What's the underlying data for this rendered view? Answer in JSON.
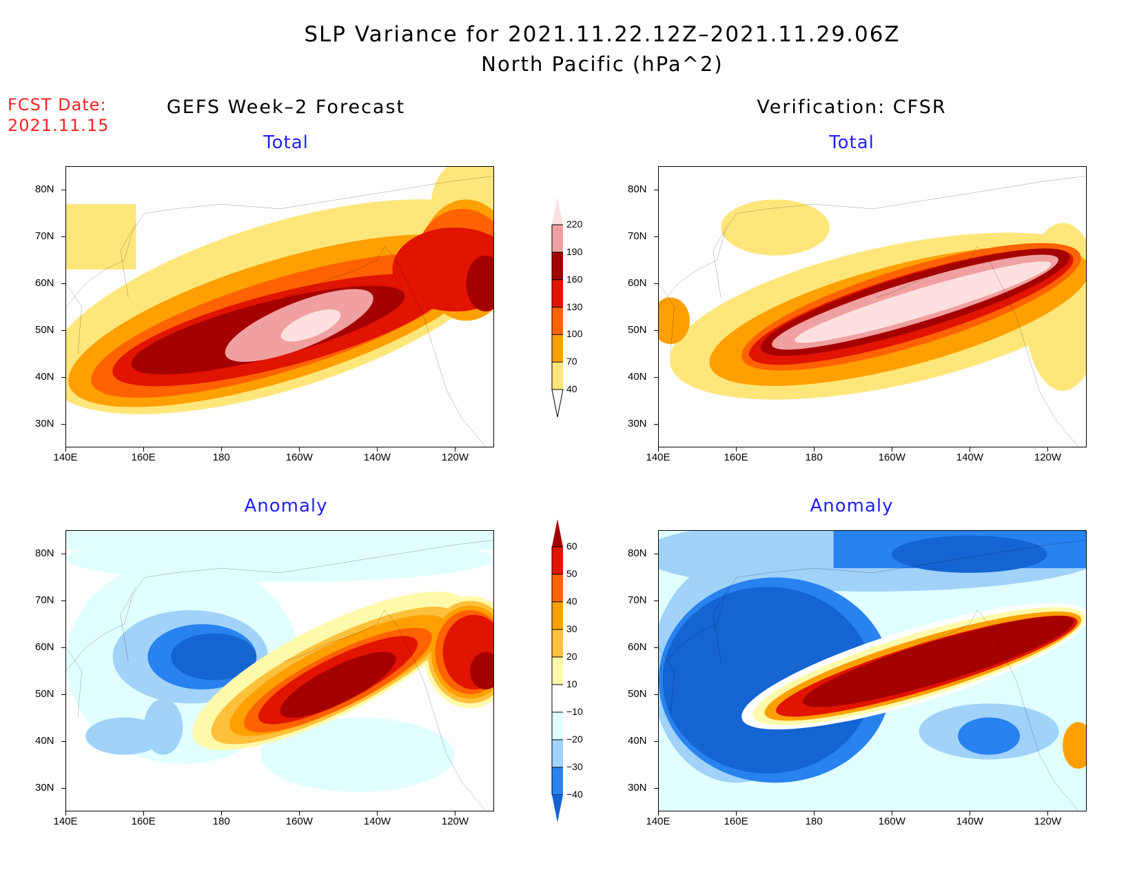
{
  "title_line1": "SLP Variance for 2021.11.22.12Z–2021.11.29.06Z",
  "title_line2": "North Pacific (hPa^2)",
  "fcst_label": "FCST Date:",
  "fcst_date": "2021.11.15",
  "left_header": "GEFS Week–2 Forecast",
  "right_header": "Verification: CFSR",
  "row_top_label": "Total",
  "row_bottom_label": "Anomaly",
  "chart_data": [
    {
      "type": "heatmap",
      "title": "GEFS Week-2 Forecast — Total",
      "x_ticks": [
        "140E",
        "160E",
        "180",
        "160W",
        "140W",
        "120W"
      ],
      "y_ticks": [
        "30N",
        "40N",
        "50N",
        "60N",
        "70N",
        "80N"
      ],
      "lon_range": [
        140,
        250
      ],
      "lat_range": [
        25,
        85
      ],
      "max_region": "~155W 50N, >220"
    },
    {
      "type": "heatmap",
      "title": "Verification: CFSR — Total",
      "x_ticks": [
        "140E",
        "160E",
        "180",
        "160W",
        "140W",
        "120W"
      ],
      "y_ticks": [
        "30N",
        "40N",
        "50N",
        "60N",
        "70N",
        "80N"
      ],
      "lon_range": [
        140,
        250
      ],
      "lat_range": [
        25,
        85
      ],
      "max_region": "band 175E–115W, 45–58N, >220"
    },
    {
      "type": "heatmap",
      "title": "GEFS Week-2 Forecast — Anomaly",
      "x_ticks": [
        "140E",
        "160E",
        "180",
        "160W",
        "140W",
        "120W"
      ],
      "y_ticks": [
        "30N",
        "40N",
        "50N",
        "60N",
        "70N",
        "80N"
      ],
      "lon_range": [
        140,
        250
      ],
      "lat_range": [
        25,
        85
      ]
    },
    {
      "type": "heatmap",
      "title": "Verification: CFSR — Anomaly",
      "x_ticks": [
        "140E",
        "160E",
        "180",
        "160W",
        "140W",
        "120W"
      ],
      "y_ticks": [
        "30N",
        "40N",
        "50N",
        "60N",
        "70N",
        "80N"
      ],
      "lon_range": [
        140,
        250
      ],
      "lat_range": [
        25,
        85
      ]
    }
  ],
  "colorbar_total": {
    "levels": [
      "40",
      "70",
      "100",
      "130",
      "160",
      "190",
      "220"
    ],
    "colors": [
      "#ffe67a",
      "#ffa000",
      "#ff6200",
      "#e11400",
      "#a50000",
      "#f0a0a0",
      "#ffe0e0"
    ]
  },
  "colorbar_anomaly": {
    "levels": [
      "−40",
      "−30",
      "−20",
      "−10",
      "10",
      "20",
      "30",
      "40",
      "50",
      "60"
    ],
    "colors": [
      "#1464d2",
      "#2882f0",
      "#a0d2fa",
      "#e1ffff",
      "#ffffff",
      "#fffaaa",
      "#ffc03c",
      "#ffa000",
      "#ff6200",
      "#e11400",
      "#a50000"
    ]
  }
}
